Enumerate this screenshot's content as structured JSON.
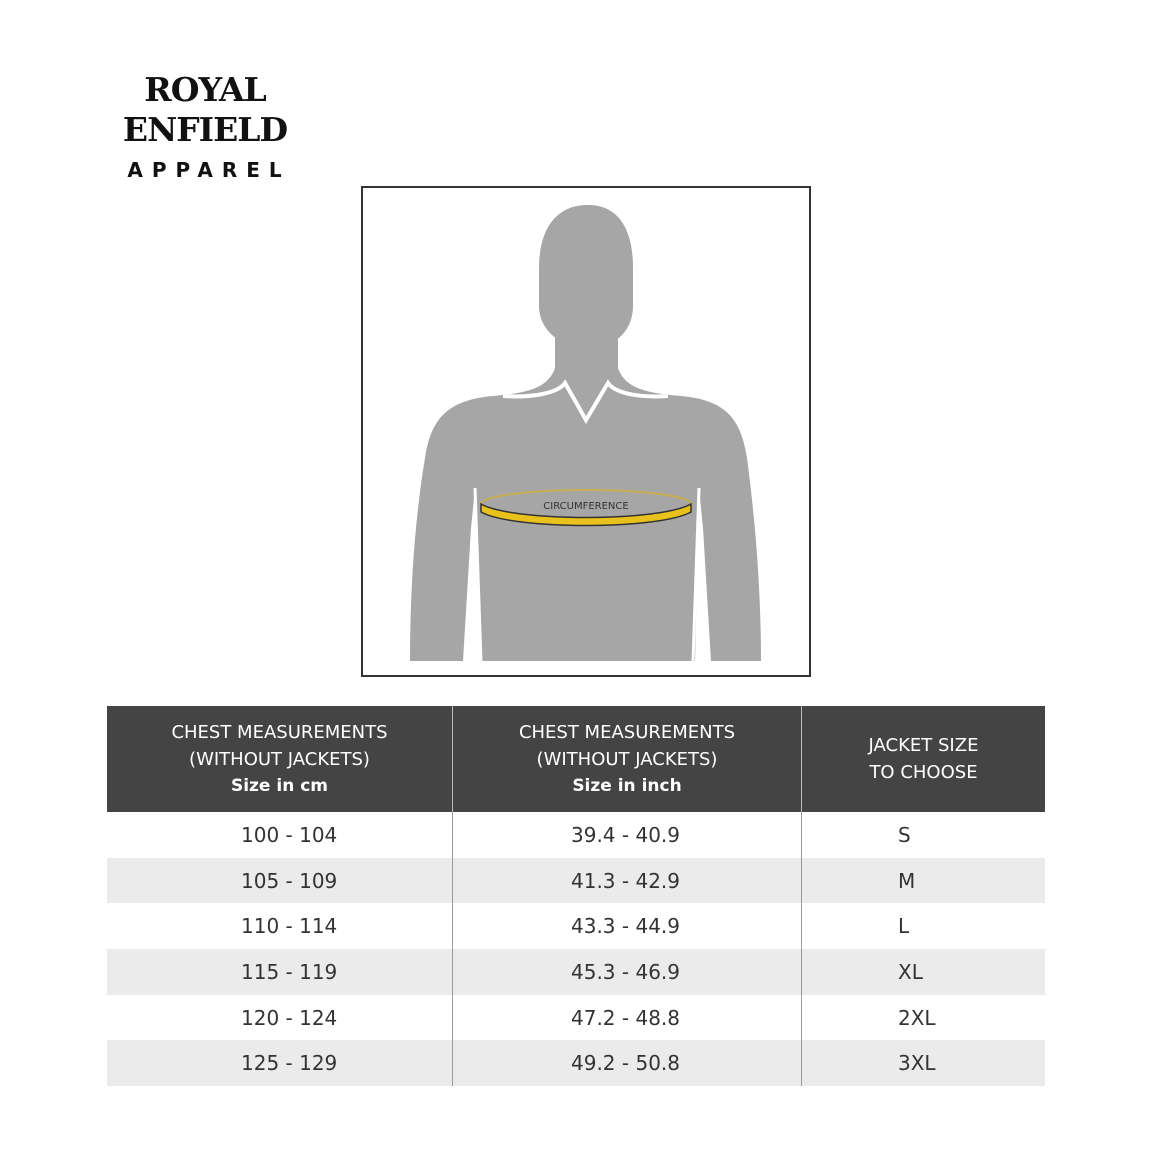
{
  "logo": {
    "brand": "ROYAL ENFIELD",
    "sub": "APPAREL"
  },
  "figure": {
    "label": "CIRCUMFERENCE",
    "tape_color": "#e8c11c",
    "body_color": "#a6a6a6"
  },
  "table": {
    "headers": [
      {
        "line1": "CHEST MEASUREMENTS",
        "line2": "(WITHOUT JACKETS)",
        "unit": "Size in cm"
      },
      {
        "line1": "CHEST MEASUREMENTS",
        "line2": "(WITHOUT JACKETS)",
        "unit": "Size in inch"
      },
      {
        "line1": "JACKET SIZE",
        "line2": "TO CHOOSE",
        "unit": ""
      }
    ],
    "rows": [
      {
        "cm": "100 - 104",
        "inch": "39.4 - 40.9",
        "size": "S"
      },
      {
        "cm": "105 - 109",
        "inch": "41.3 - 42.9",
        "size": "M"
      },
      {
        "cm": "110 - 114",
        "inch": "43.3 - 44.9",
        "size": "L"
      },
      {
        "cm": "115 - 119",
        "inch": "45.3 - 46.9",
        "size": "XL"
      },
      {
        "cm": "120 - 124",
        "inch": "47.2 - 48.8",
        "size": "2XL"
      },
      {
        "cm": "125 - 129",
        "inch": "49.2 - 50.8",
        "size": "3XL"
      }
    ]
  }
}
